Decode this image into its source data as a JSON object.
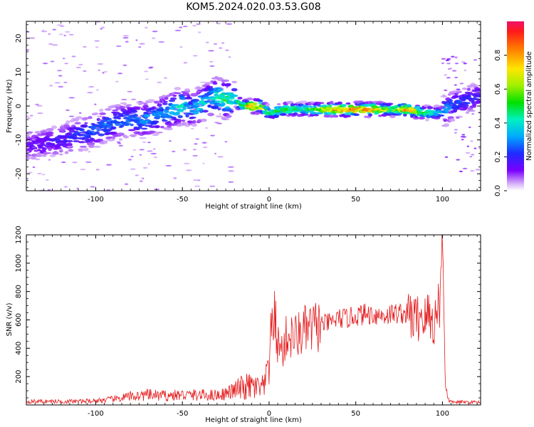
{
  "figure": {
    "title": "KOM5.2024.020.03.53.G08"
  },
  "chart_data": [
    {
      "type": "heatmap",
      "panel": "spectrum",
      "xlabel": "Height of straight line (km)",
      "ylabel": "Frequency (Hz)",
      "xlim": [
        -140,
        122
      ],
      "ylim": [
        -25,
        25
      ],
      "xticks": [
        -100,
        -50,
        0,
        50,
        100
      ],
      "yticks": [
        -20,
        -10,
        0,
        10,
        20
      ],
      "grid": false,
      "colorbar": {
        "label": "Normalized spectral amplitude",
        "ticks": [
          0.0,
          0.2,
          0.4,
          0.6,
          0.8
        ],
        "tick_labels": [
          "0.0",
          "0.2",
          "0.4",
          "0.6",
          "0.8"
        ],
        "range": [
          0,
          1
        ],
        "colormap": "rainbow-white-bottom"
      },
      "ridge": {
        "x": [
          -140,
          -120,
          -100,
          -90,
          -80,
          -70,
          -60,
          -50,
          -45,
          -40,
          -35,
          -30,
          -25,
          -20,
          -15,
          -10,
          -5,
          0,
          10,
          20,
          30,
          40,
          50,
          60,
          70,
          80,
          90,
          95,
          100,
          105,
          110,
          115,
          122
        ],
        "y": [
          -12,
          -10,
          -7,
          -5,
          -4,
          -4,
          -2,
          0,
          -1,
          0,
          2,
          3,
          2,
          2,
          0,
          0,
          0,
          -2,
          -1,
          -1,
          -1,
          -1,
          -1,
          -1,
          -1,
          -1,
          -2,
          -2,
          -2,
          0,
          1,
          2,
          3
        ],
        "amplitude": [
          0.15,
          0.2,
          0.3,
          0.3,
          0.3,
          0.35,
          0.35,
          0.45,
          0.3,
          0.45,
          0.35,
          0.5,
          0.55,
          0.45,
          0.6,
          0.95,
          0.85,
          0.55,
          0.6,
          0.5,
          0.7,
          0.95,
          0.95,
          0.95,
          0.6,
          0.95,
          0.55,
          0.45,
          0.4,
          0.3,
          0.25,
          0.25,
          0.2
        ]
      }
    },
    {
      "type": "line",
      "panel": "snr",
      "xlabel": "Height of straight line (km)",
      "ylabel": "SNR (v/v)",
      "xlim": [
        -140,
        122
      ],
      "ylim": [
        0,
        1200
      ],
      "xticks": [
        -100,
        -50,
        0,
        50,
        100
      ],
      "yticks": [
        200,
        400,
        600,
        800,
        1000,
        1200
      ],
      "grid": false,
      "color": "#e41a1c",
      "series": [
        {
          "x": [
            -140,
            -130,
            -120,
            -110,
            -100,
            -90,
            -80,
            -70,
            -60,
            -50,
            -40,
            -30,
            -25,
            -20,
            -15,
            -10,
            -5,
            -2,
            0,
            2,
            3,
            5,
            8,
            10,
            15,
            20,
            25,
            30,
            35,
            40,
            45,
            50,
            55,
            60,
            65,
            70,
            75,
            80,
            85,
            88,
            90,
            92,
            95,
            98,
            99,
            100,
            101,
            102,
            103,
            105,
            110,
            115,
            122
          ],
          "y": [
            25,
            25,
            25,
            25,
            30,
            40,
            60,
            70,
            65,
            70,
            70,
            70,
            80,
            100,
            120,
            130,
            110,
            130,
            400,
            560,
            640,
            430,
            380,
            480,
            480,
            520,
            540,
            570,
            580,
            610,
            610,
            630,
            640,
            640,
            630,
            640,
            650,
            640,
            600,
            650,
            600,
            640,
            560,
            720,
            850,
            1180,
            620,
            120,
            40,
            20,
            20,
            20,
            20
          ]
        }
      ]
    }
  ]
}
